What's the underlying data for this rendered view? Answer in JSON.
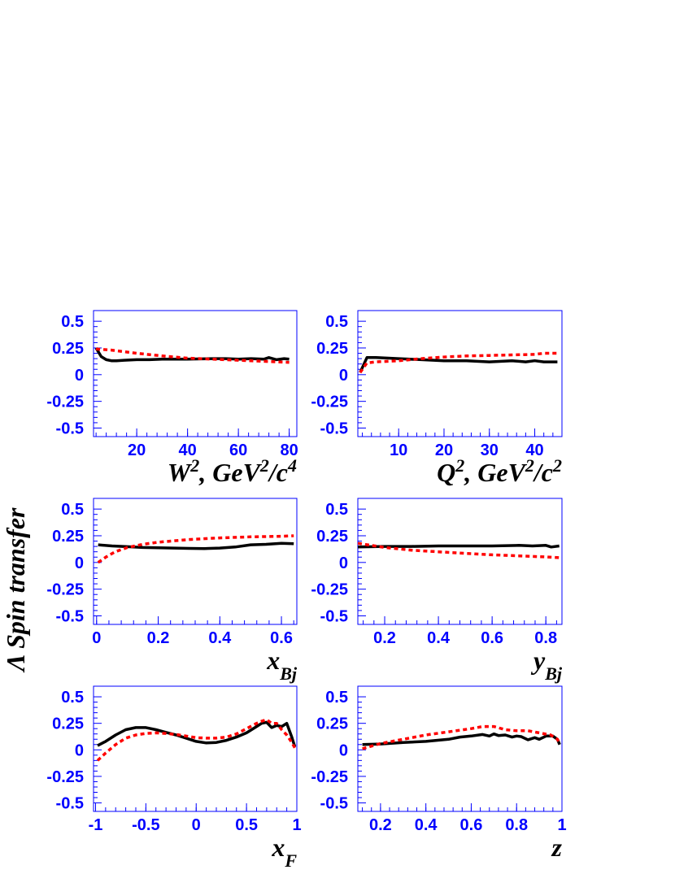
{
  "figure": {
    "ylabel": "Λ Spin transfer",
    "colors": {
      "axes": "#0000ff",
      "series_solid": "#000000",
      "series_dotted": "#ff0000"
    }
  },
  "chart_data": [
    {
      "type": "line",
      "xlabel": {
        "base": "W",
        "sup1": "2",
        "mid": ", GeV",
        "sup2": "2",
        "tail": "/c",
        "sup3": "4",
        "sub": ""
      },
      "xlim": [
        3,
        83
      ],
      "ylim": [
        -0.58,
        0.6
      ],
      "xticks": [
        20,
        40,
        60,
        80
      ],
      "xtick_labels": [
        "20",
        "40",
        "60",
        "80"
      ],
      "yticks": [
        0.5,
        0.25,
        0,
        -0.25,
        -0.5
      ],
      "ytick_labels": [
        "0.5",
        "0.25",
        "0",
        "-0.25",
        "-0.5"
      ],
      "series": [
        {
          "style": "solid",
          "color": "#000000",
          "x": [
            4,
            6,
            8,
            10,
            12,
            15,
            20,
            25,
            30,
            40,
            50,
            55,
            60,
            65,
            70,
            72,
            75,
            78,
            80
          ],
          "y": [
            0.25,
            0.17,
            0.14,
            0.13,
            0.13,
            0.135,
            0.14,
            0.14,
            0.145,
            0.145,
            0.15,
            0.15,
            0.145,
            0.15,
            0.145,
            0.16,
            0.14,
            0.15,
            0.145
          ]
        },
        {
          "style": "dotted",
          "color": "#ff0000",
          "x": [
            4,
            10,
            20,
            30,
            40,
            50,
            60,
            70,
            80
          ],
          "y": [
            0.24,
            0.23,
            0.2,
            0.175,
            0.155,
            0.145,
            0.135,
            0.125,
            0.115
          ]
        }
      ]
    },
    {
      "type": "line",
      "xlabel": {
        "base": "Q",
        "sup1": "2",
        "mid": ", GeV",
        "sup2": "2",
        "tail": "/c",
        "sup3": "2",
        "sub": ""
      },
      "xlim": [
        1,
        46
      ],
      "ylim": [
        -0.58,
        0.6
      ],
      "xticks": [
        10,
        20,
        30,
        40
      ],
      "xtick_labels": [
        "10",
        "20",
        "30",
        "40"
      ],
      "yticks": [
        0.5,
        0.25,
        0,
        -0.25,
        -0.5
      ],
      "ytick_labels": [
        "0.5",
        "0.25",
        "0",
        "-0.25",
        "-0.5"
      ],
      "series": [
        {
          "style": "solid",
          "color": "#000000",
          "x": [
            1.5,
            3,
            5,
            10,
            15,
            20,
            25,
            30,
            35,
            38,
            40,
            42,
            45
          ],
          "y": [
            0.02,
            0.16,
            0.16,
            0.15,
            0.14,
            0.13,
            0.13,
            0.12,
            0.13,
            0.12,
            0.13,
            0.12,
            0.12
          ]
        },
        {
          "style": "dotted",
          "color": "#ff0000",
          "x": [
            1.5,
            3,
            5,
            10,
            15,
            20,
            25,
            30,
            35,
            40,
            42,
            45
          ],
          "y": [
            0.02,
            0.11,
            0.12,
            0.13,
            0.15,
            0.165,
            0.175,
            0.18,
            0.185,
            0.19,
            0.2,
            0.2
          ]
        }
      ]
    },
    {
      "type": "line",
      "xlabel": {
        "base": "x",
        "sup1": "",
        "mid": "",
        "sup2": "",
        "tail": "",
        "sup3": "",
        "sub": "Bj"
      },
      "xlim": [
        -0.01,
        0.65
      ],
      "ylim": [
        -0.58,
        0.6
      ],
      "xticks": [
        0,
        0.2,
        0.4,
        0.6
      ],
      "xtick_labels": [
        "0",
        "0.2",
        "0.4",
        "0.6"
      ],
      "yticks": [
        0.5,
        0.25,
        0,
        -0.25,
        -0.5
      ],
      "ytick_labels": [
        "0.5",
        "0.25",
        "0",
        "-0.25",
        "-0.5"
      ],
      "series": [
        {
          "style": "solid",
          "color": "#000000",
          "x": [
            0.005,
            0.05,
            0.1,
            0.15,
            0.2,
            0.25,
            0.3,
            0.35,
            0.4,
            0.45,
            0.5,
            0.55,
            0.6,
            0.64
          ],
          "y": [
            0.165,
            0.155,
            0.148,
            0.14,
            0.138,
            0.135,
            0.132,
            0.13,
            0.135,
            0.145,
            0.165,
            0.17,
            0.18,
            0.175
          ]
        },
        {
          "style": "dotted",
          "color": "#ff0000",
          "x": [
            0.005,
            0.03,
            0.06,
            0.1,
            0.15,
            0.2,
            0.3,
            0.4,
            0.5,
            0.6,
            0.64
          ],
          "y": [
            0.0,
            0.05,
            0.1,
            0.14,
            0.17,
            0.19,
            0.215,
            0.23,
            0.24,
            0.245,
            0.25
          ]
        }
      ]
    },
    {
      "type": "line",
      "xlabel": {
        "base": "y",
        "sup1": "",
        "mid": "",
        "sup2": "",
        "tail": "",
        "sup3": "",
        "sub": "Bj"
      },
      "xlim": [
        0.1,
        0.86
      ],
      "ylim": [
        -0.58,
        0.6
      ],
      "xticks": [
        0.2,
        0.4,
        0.6,
        0.8
      ],
      "xtick_labels": [
        "0.2",
        "0.4",
        "0.6",
        "0.8"
      ],
      "yticks": [
        0.5,
        0.25,
        0,
        -0.25,
        -0.5
      ],
      "ytick_labels": [
        "0.5",
        "0.25",
        "0",
        "-0.25",
        "-0.5"
      ],
      "series": [
        {
          "style": "solid",
          "color": "#000000",
          "x": [
            0.1,
            0.2,
            0.3,
            0.4,
            0.5,
            0.6,
            0.7,
            0.75,
            0.8,
            0.82,
            0.85
          ],
          "y": [
            0.145,
            0.15,
            0.15,
            0.155,
            0.155,
            0.155,
            0.16,
            0.155,
            0.16,
            0.145,
            0.155
          ]
        },
        {
          "style": "dotted",
          "color": "#ff0000",
          "x": [
            0.1,
            0.2,
            0.3,
            0.4,
            0.5,
            0.6,
            0.7,
            0.8,
            0.85
          ],
          "y": [
            0.18,
            0.14,
            0.115,
            0.1,
            0.085,
            0.072,
            0.062,
            0.052,
            0.045
          ]
        }
      ]
    },
    {
      "type": "line",
      "xlabel": {
        "base": "x",
        "sup1": "",
        "mid": "",
        "sup2": "",
        "tail": "",
        "sup3": "",
        "sub": "F"
      },
      "xlim": [
        -1.02,
        1.0
      ],
      "ylim": [
        -0.58,
        0.6
      ],
      "xticks": [
        -1,
        -0.5,
        0,
        0.5,
        1
      ],
      "xtick_labels": [
        "-1",
        "-0.5",
        "0",
        "0.5",
        "1"
      ],
      "yticks": [
        0.5,
        0.25,
        0,
        -0.25,
        -0.5
      ],
      "ytick_labels": [
        "0.5",
        "0.25",
        "0",
        "-0.25",
        "-0.5"
      ],
      "series": [
        {
          "style": "solid",
          "color": "#000000",
          "x": [
            -0.98,
            -0.9,
            -0.8,
            -0.7,
            -0.6,
            -0.5,
            -0.4,
            -0.3,
            -0.2,
            -0.1,
            0.0,
            0.1,
            0.2,
            0.3,
            0.4,
            0.5,
            0.6,
            0.65,
            0.7,
            0.75,
            0.8,
            0.85,
            0.9,
            0.95,
            0.98
          ],
          "y": [
            0.04,
            0.08,
            0.14,
            0.19,
            0.21,
            0.21,
            0.19,
            0.165,
            0.14,
            0.11,
            0.08,
            0.065,
            0.07,
            0.09,
            0.12,
            0.16,
            0.22,
            0.25,
            0.26,
            0.21,
            0.23,
            0.22,
            0.25,
            0.12,
            0.03
          ]
        },
        {
          "style": "dotted",
          "color": "#ff0000",
          "x": [
            -0.98,
            -0.9,
            -0.8,
            -0.7,
            -0.6,
            -0.5,
            -0.4,
            -0.3,
            -0.2,
            -0.1,
            0.0,
            0.1,
            0.2,
            0.3,
            0.4,
            0.5,
            0.6,
            0.65,
            0.7,
            0.75,
            0.8,
            0.85,
            0.9,
            0.95,
            0.98
          ],
          "y": [
            -0.1,
            -0.03,
            0.05,
            0.11,
            0.14,
            0.155,
            0.16,
            0.155,
            0.145,
            0.13,
            0.115,
            0.11,
            0.11,
            0.12,
            0.15,
            0.2,
            0.25,
            0.27,
            0.285,
            0.25,
            0.25,
            0.19,
            0.14,
            0.07,
            0.02
          ]
        }
      ]
    },
    {
      "type": "line",
      "xlabel": {
        "base": "z",
        "sup1": "",
        "mid": "",
        "sup2": "",
        "tail": "",
        "sup3": "",
        "sub": ""
      },
      "xlim": [
        0.1,
        1.0
      ],
      "ylim": [
        -0.58,
        0.6
      ],
      "xticks": [
        0.2,
        0.4,
        0.6,
        0.8,
        1.0
      ],
      "xtick_labels": [
        "0.2",
        "0.4",
        "0.6",
        "0.8",
        "1"
      ],
      "yticks": [
        0.5,
        0.25,
        0,
        -0.25,
        -0.5
      ],
      "ytick_labels": [
        "0.5",
        "0.25",
        "0",
        "-0.25",
        "-0.5"
      ],
      "series": [
        {
          "style": "solid",
          "color": "#000000",
          "x": [
            0.12,
            0.2,
            0.3,
            0.4,
            0.5,
            0.55,
            0.6,
            0.65,
            0.68,
            0.7,
            0.72,
            0.75,
            0.78,
            0.8,
            0.82,
            0.85,
            0.88,
            0.9,
            0.93,
            0.96,
            0.98,
            0.99
          ],
          "y": [
            0.05,
            0.055,
            0.07,
            0.08,
            0.1,
            0.12,
            0.13,
            0.145,
            0.13,
            0.15,
            0.135,
            0.14,
            0.12,
            0.13,
            0.125,
            0.095,
            0.115,
            0.1,
            0.13,
            0.13,
            0.1,
            0.05
          ]
        },
        {
          "style": "dotted",
          "color": "#ff0000",
          "x": [
            0.12,
            0.2,
            0.3,
            0.4,
            0.5,
            0.6,
            0.65,
            0.7,
            0.75,
            0.8,
            0.85,
            0.9,
            0.95,
            0.98,
            0.99
          ],
          "y": [
            0.01,
            0.06,
            0.1,
            0.14,
            0.17,
            0.2,
            0.22,
            0.22,
            0.19,
            0.18,
            0.18,
            0.16,
            0.14,
            0.1,
            0.06
          ]
        }
      ]
    }
  ]
}
